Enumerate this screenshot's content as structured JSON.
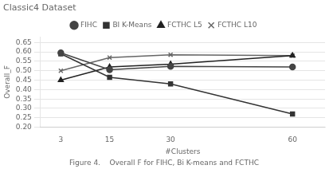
{
  "chart_data": {
    "type": "line",
    "title": "Classic4 Dataset",
    "caption": "Figure 4.    Overall F for FIHC, Bi K-means and FCTHC",
    "x_label": "#Clusters",
    "y_label": "Overall_F",
    "x": [
      3,
      15,
      30,
      60
    ],
    "series": [
      {
        "name": "FIHC",
        "color": "#444444",
        "marker": "circle",
        "line_style": "solid",
        "values": [
          0.595,
          0.505,
          0.523,
          0.52
        ]
      },
      {
        "name": "BI K-Means",
        "color": "#333333",
        "marker": "square",
        "line_style": "solid",
        "values": [
          0.59,
          0.465,
          0.43,
          0.27
        ]
      },
      {
        "name": "FCTHC L5",
        "color": "#222222",
        "marker": "triangle",
        "line_style": "solid",
        "values": [
          0.45,
          0.52,
          0.535,
          0.58
        ]
      },
      {
        "name": "FCTHC L10",
        "color": "#666666",
        "marker": "x",
        "line_style": "solid",
        "values": [
          0.5,
          0.57,
          0.585,
          0.58
        ]
      }
    ],
    "xlim": [
      -2,
      68
    ],
    "xticks": [
      3,
      15,
      30,
      60
    ],
    "ylim": [
      0.2,
      0.68
    ],
    "yticks": [
      {
        "value": 0.2,
        "label": "0.20"
      },
      0.25,
      {
        "value": 0.3,
        "label": "0.30"
      },
      0.35,
      {
        "value": 0.4,
        "label": "0.40"
      },
      0.45,
      {
        "value": 0.5,
        "label": "0.50"
      },
      0.55,
      {
        "value": 0.6,
        "label": "0.60"
      },
      0.65
    ],
    "grid": "y",
    "legend": "top"
  }
}
